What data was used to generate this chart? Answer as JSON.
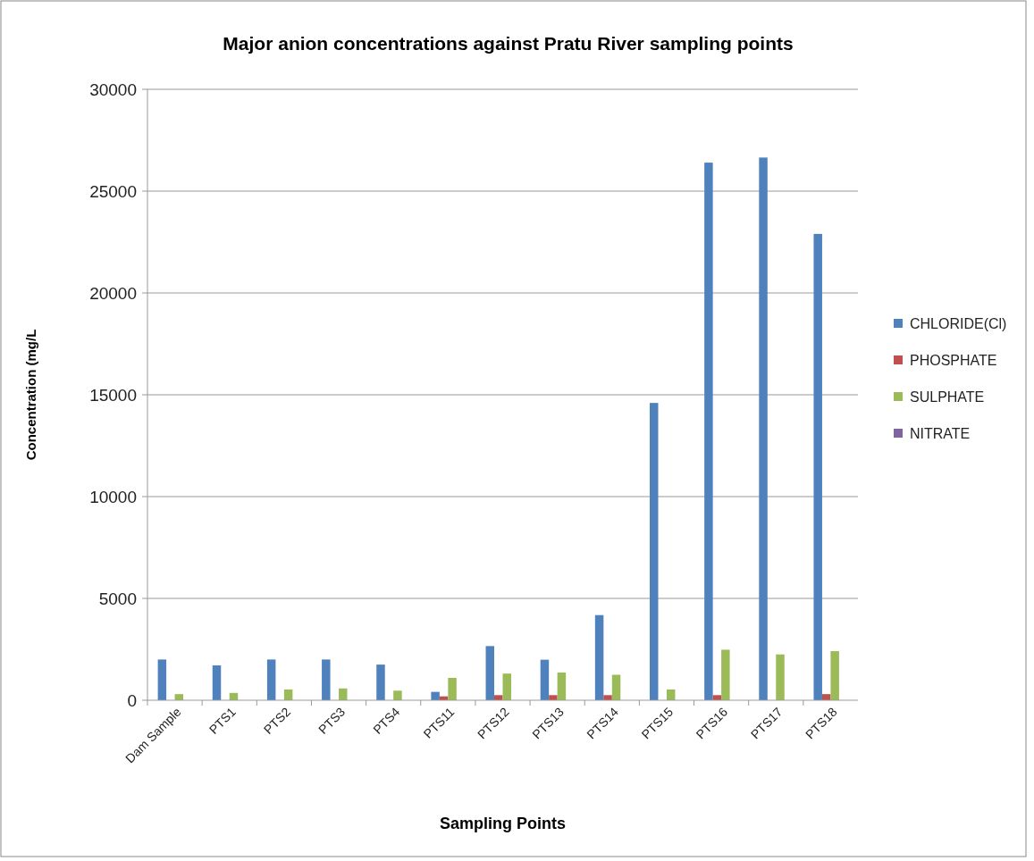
{
  "chart_data": {
    "type": "bar",
    "title": "Major anion concentrations against Pratu River sampling points",
    "xlabel": "Sampling Points",
    "ylabel": "Concentration (mg/L",
    "categories": [
      "Dam Sample",
      "PTS1",
      "PTS2",
      "PTS3",
      "PTS4",
      "PTS11",
      "PTS12",
      "PTS13",
      "PTS14",
      "PTS15",
      "PTS16",
      "PTS17",
      "PTS18"
    ],
    "series": [
      {
        "name": "CHLORIDE(Cl)",
        "color": "#4f81bd",
        "values": [
          2000,
          1710,
          2000,
          2000,
          1750,
          410,
          2660,
          1990,
          4180,
          14600,
          26400,
          26650,
          22900
        ]
      },
      {
        "name": "PHOSPHATE",
        "color": "#c0504d",
        "values": [
          0,
          0,
          0,
          0,
          0,
          190,
          250,
          250,
          250,
          0,
          250,
          0,
          300
        ]
      },
      {
        "name": "SULPHATE",
        "color": "#9bbb59",
        "values": [
          300,
          360,
          530,
          580,
          470,
          1100,
          1310,
          1360,
          1250,
          530,
          2480,
          2250,
          2410
        ]
      },
      {
        "name": "NITRATE",
        "color": "#8064a2",
        "values": [
          0,
          0,
          0,
          0,
          0,
          0,
          0,
          0,
          0,
          0,
          0,
          0,
          0
        ]
      }
    ],
    "ylim": [
      0,
      30000
    ],
    "yticks": [
      0,
      5000,
      10000,
      15000,
      20000,
      25000,
      30000
    ],
    "grid": "y",
    "legend": "right"
  }
}
